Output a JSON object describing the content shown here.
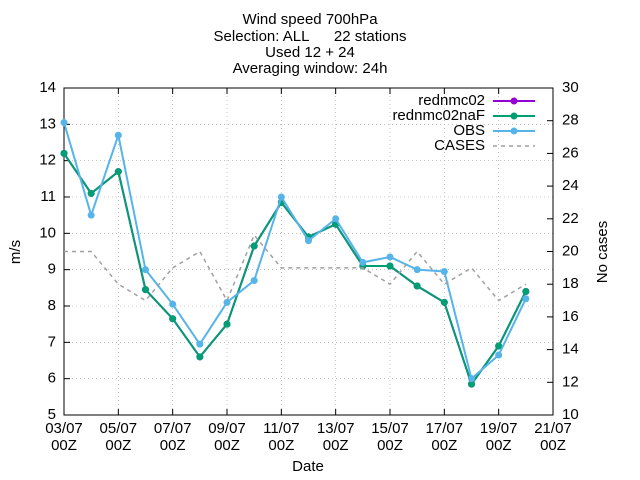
{
  "chart_data": {
    "type": "line",
    "title": [
      "Wind speed 700hPa",
      "Selection: ALL      22 stations",
      "Used 12 + 24",
      "Averaging window: 24h"
    ],
    "xlabel": "Date",
    "ylabel": "m/s",
    "y2label": "No cases",
    "x": [
      3,
      4,
      5,
      6,
      7,
      8,
      9,
      10,
      11,
      12,
      13,
      14,
      15,
      16,
      17,
      18,
      19,
      20
    ],
    "xlim": [
      3,
      21
    ],
    "xticks": [
      {
        "value": 3,
        "label": [
          "03/07",
          "00Z"
        ]
      },
      {
        "value": 5,
        "label": [
          "05/07",
          "00Z"
        ]
      },
      {
        "value": 7,
        "label": [
          "07/07",
          "00Z"
        ]
      },
      {
        "value": 9,
        "label": [
          "09/07",
          "00Z"
        ]
      },
      {
        "value": 11,
        "label": [
          "11/07",
          "00Z"
        ]
      },
      {
        "value": 13,
        "label": [
          "13/07",
          "00Z"
        ]
      },
      {
        "value": 15,
        "label": [
          "15/07",
          "00Z"
        ]
      },
      {
        "value": 17,
        "label": [
          "17/07",
          "00Z"
        ]
      },
      {
        "value": 19,
        "label": [
          "19/07",
          "00Z"
        ]
      },
      {
        "value": 21,
        "label": [
          "21/07",
          "00Z"
        ]
      }
    ],
    "ylim": [
      5,
      14
    ],
    "yticks": [
      5,
      6,
      7,
      8,
      9,
      10,
      11,
      12,
      13,
      14
    ],
    "y2lim": [
      10,
      30
    ],
    "y2ticks": [
      10,
      12,
      14,
      16,
      18,
      20,
      22,
      24,
      26,
      28,
      30
    ],
    "grid": true,
    "legend": "top-right",
    "series": [
      {
        "name": "rednmc02",
        "color": "#9400d3",
        "values": [
          12.2,
          11.1,
          11.7,
          8.45,
          7.65,
          6.6,
          7.5,
          9.65,
          10.85,
          9.9,
          10.25,
          9.1,
          9.1,
          8.55,
          8.1,
          5.85,
          6.9,
          8.4
        ]
      },
      {
        "name": "rednmc02naF",
        "color": "#009e73",
        "values": [
          12.2,
          11.1,
          11.7,
          8.45,
          7.65,
          6.6,
          7.5,
          9.65,
          10.85,
          9.9,
          10.25,
          9.1,
          9.1,
          8.55,
          8.1,
          5.85,
          6.9,
          8.4
        ]
      },
      {
        "name": "OBS",
        "color": "#56b4e9",
        "values": [
          13.05,
          10.5,
          12.7,
          9.0,
          8.05,
          6.95,
          8.1,
          8.7,
          11.0,
          9.8,
          10.4,
          9.2,
          9.35,
          9.0,
          8.95,
          6.0,
          6.65,
          8.2
        ]
      },
      {
        "name": "CASES",
        "color": "#a0a0a0",
        "axis": "y2",
        "dashed": true,
        "values": [
          20,
          20,
          18,
          17,
          19,
          20,
          17,
          21,
          19,
          19,
          19,
          19,
          18,
          20,
          18,
          19,
          17,
          18
        ]
      }
    ]
  }
}
